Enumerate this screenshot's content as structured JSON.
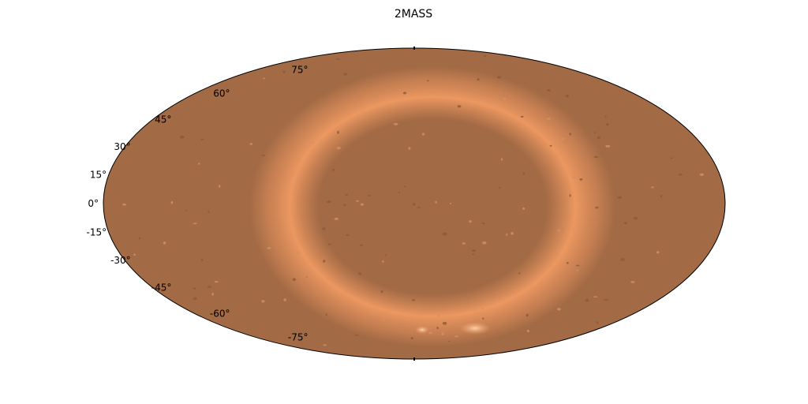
{
  "chart_data": {
    "type": "heatmap",
    "title": "2MASS",
    "projection": "hammer (all-sky)",
    "colormap": "copper",
    "colors": {
      "background": "#a26a45",
      "band": "#e3905c",
      "edge": "#000000"
    },
    "grid": false,
    "legend": "none",
    "latitude_range": [
      -90,
      90
    ],
    "latitude_ticks": [
      {
        "value": 75,
        "label": "75°"
      },
      {
        "value": 60,
        "label": "60°"
      },
      {
        "value": 45,
        "label": "45°"
      },
      {
        "value": 30,
        "label": "30°"
      },
      {
        "value": 15,
        "label": "15°"
      },
      {
        "value": 0,
        "label": "0°"
      },
      {
        "value": -15,
        "label": "-15°"
      },
      {
        "value": -30,
        "label": "-30°"
      },
      {
        "value": -45,
        "label": "-45°"
      },
      {
        "value": -60,
        "label": "-60°"
      },
      {
        "value": -75,
        "label": "-75°"
      }
    ]
  }
}
